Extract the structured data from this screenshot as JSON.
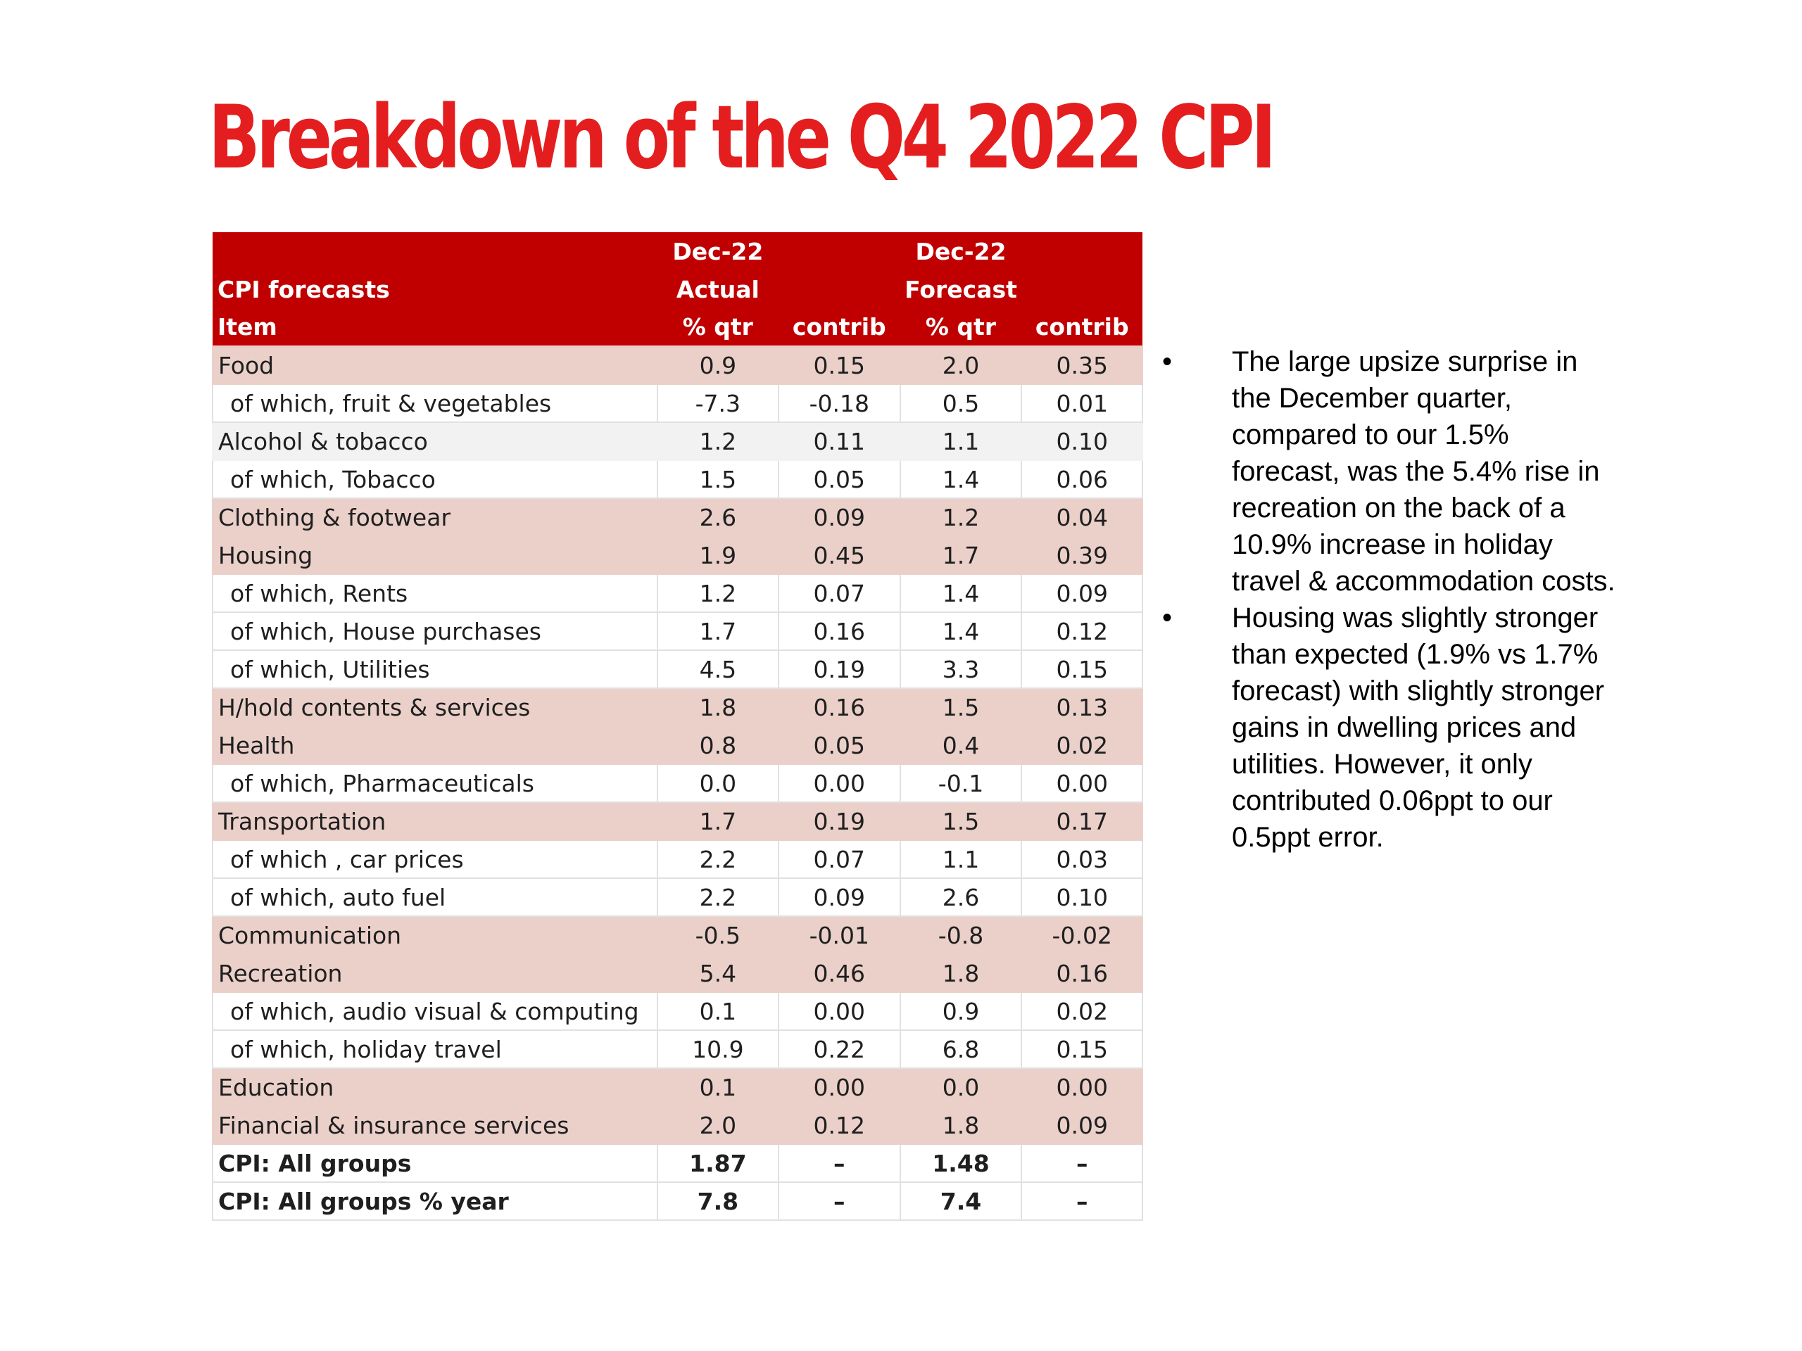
{
  "title": "Breakdown of the Q4 2022 CPI",
  "colors": {
    "title": "#e41e1e",
    "header_bg": "#c00000",
    "category_bg": "#ebd0ca",
    "alt_bg": "#f2f2f2"
  },
  "table": {
    "header": {
      "row1": [
        "",
        "Dec-22",
        "",
        "Dec-22",
        ""
      ],
      "row2": [
        "CPI forecasts",
        "Actual",
        "",
        "Forecast",
        ""
      ],
      "row3": [
        "Item",
        "% qtr",
        "contrib",
        "% qtr",
        "contrib"
      ]
    },
    "rows": [
      {
        "item": "Food",
        "actual_qtr": "0.9",
        "actual_contrib": "0.15",
        "forecast_qtr": "2.0",
        "forecast_contrib": "0.35"
      },
      {
        "item": "of which, fruit & vegetables",
        "actual_qtr": "-7.3",
        "actual_contrib": "-0.18",
        "forecast_qtr": "0.5",
        "forecast_contrib": "0.01"
      },
      {
        "item": "Alcohol & tobacco",
        "actual_qtr": "1.2",
        "actual_contrib": "0.11",
        "forecast_qtr": "1.1",
        "forecast_contrib": "0.10"
      },
      {
        "item": "of which, Tobacco",
        "actual_qtr": "1.5",
        "actual_contrib": "0.05",
        "forecast_qtr": "1.4",
        "forecast_contrib": "0.06"
      },
      {
        "item": "Clothing & footwear",
        "actual_qtr": "2.6",
        "actual_contrib": "0.09",
        "forecast_qtr": "1.2",
        "forecast_contrib": "0.04"
      },
      {
        "item": "Housing",
        "actual_qtr": "1.9",
        "actual_contrib": "0.45",
        "forecast_qtr": "1.7",
        "forecast_contrib": "0.39"
      },
      {
        "item": "of which, Rents",
        "actual_qtr": "1.2",
        "actual_contrib": "0.07",
        "forecast_qtr": "1.4",
        "forecast_contrib": "0.09"
      },
      {
        "item": "of which, House purchases",
        "actual_qtr": "1.7",
        "actual_contrib": "0.16",
        "forecast_qtr": "1.4",
        "forecast_contrib": "0.12"
      },
      {
        "item": "of which, Utilities",
        "actual_qtr": "4.5",
        "actual_contrib": "0.19",
        "forecast_qtr": "3.3",
        "forecast_contrib": "0.15"
      },
      {
        "item": "H/hold contents & services",
        "actual_qtr": "1.8",
        "actual_contrib": "0.16",
        "forecast_qtr": "1.5",
        "forecast_contrib": "0.13"
      },
      {
        "item": "Health",
        "actual_qtr": "0.8",
        "actual_contrib": "0.05",
        "forecast_qtr": "0.4",
        "forecast_contrib": "0.02"
      },
      {
        "item": "of which, Pharmaceuticals",
        "actual_qtr": "0.0",
        "actual_contrib": "0.00",
        "forecast_qtr": "-0.1",
        "forecast_contrib": "0.00"
      },
      {
        "item": "Transportation",
        "actual_qtr": "1.7",
        "actual_contrib": "0.19",
        "forecast_qtr": "1.5",
        "forecast_contrib": "0.17"
      },
      {
        "item": "of which , car prices",
        "actual_qtr": "2.2",
        "actual_contrib": "0.07",
        "forecast_qtr": "1.1",
        "forecast_contrib": "0.03"
      },
      {
        "item": "of which, auto fuel",
        "actual_qtr": "2.2",
        "actual_contrib": "0.09",
        "forecast_qtr": "2.6",
        "forecast_contrib": "0.10"
      },
      {
        "item": "Communication",
        "actual_qtr": "-0.5",
        "actual_contrib": "-0.01",
        "forecast_qtr": "-0.8",
        "forecast_contrib": "-0.02"
      },
      {
        "item": "Recreation",
        "actual_qtr": "5.4",
        "actual_contrib": "0.46",
        "forecast_qtr": "1.8",
        "forecast_contrib": "0.16"
      },
      {
        "item": "of which, audio visual & computing",
        "actual_qtr": "0.1",
        "actual_contrib": "0.00",
        "forecast_qtr": "0.9",
        "forecast_contrib": "0.02"
      },
      {
        "item": "of which, holiday travel",
        "actual_qtr": "10.9",
        "actual_contrib": "0.22",
        "forecast_qtr": "6.8",
        "forecast_contrib": "0.15"
      },
      {
        "item": "Education",
        "actual_qtr": "0.1",
        "actual_contrib": "0.00",
        "forecast_qtr": "0.0",
        "forecast_contrib": "0.00"
      },
      {
        "item": "Financial & insurance services",
        "actual_qtr": "2.0",
        "actual_contrib": "0.12",
        "forecast_qtr": "1.8",
        "forecast_contrib": "0.09"
      },
      {
        "item": "CPI: All groups",
        "actual_qtr": "1.87",
        "actual_contrib": "–",
        "forecast_qtr": "1.48",
        "forecast_contrib": "–"
      },
      {
        "item": "CPI: All groups % year",
        "actual_qtr": "7.8",
        "actual_contrib": "–",
        "forecast_qtr": "7.4",
        "forecast_contrib": "–"
      }
    ]
  },
  "bullets": [
    "The large upsize surprise in the December quarter, compared to our 1.5% forecast, was the 5.4% rise in recreation on the back of a 10.9% increase in holiday travel & accommodation costs.",
    "Housing was slightly stronger than expected (1.9% vs 1.7% forecast) with slightly stronger gains in dwelling prices and utilities. However, it only contributed 0.06ppt to our 0.5ppt error."
  ],
  "bullet_symbol": "•"
}
